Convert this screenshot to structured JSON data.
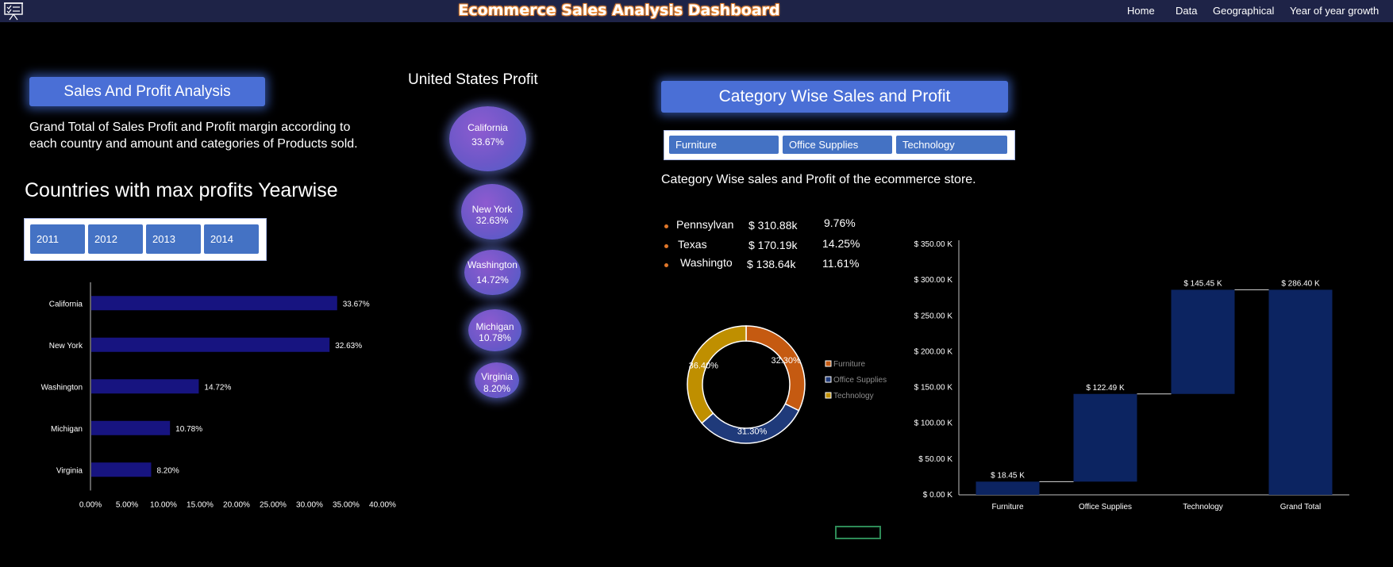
{
  "header": {
    "title": "Ecommerce Sales Analysis Dashboard",
    "nav": [
      "Home",
      "Data",
      "Geographical",
      "Year of year growth"
    ]
  },
  "left": {
    "section_button": "Sales And Profit  Analysis",
    "description_line1": "Grand Total of Sales Profit and  Profit margin according to",
    "description_line2": "each country and amount and categories of Products sold.",
    "heading": "Countries with max profits Yearwise",
    "years": [
      "2011",
      "2012",
      "2013",
      "2014"
    ]
  },
  "middle": {
    "heading": "United States Profit",
    "bubbles": [
      {
        "name": "California",
        "value": "33.67%"
      },
      {
        "name": "New York",
        "value": "32.63%"
      },
      {
        "name": "Washington",
        "value": "14.72%"
      },
      {
        "name": "Michigan",
        "value": "10.78%"
      },
      {
        "name": "Virginia",
        "value": "8.20%"
      }
    ]
  },
  "right": {
    "section_button": "Category Wise Sales and Profit",
    "categories": [
      "Furniture",
      "Office Supplies",
      "Technology"
    ],
    "description": "Category Wise sales and Profit of the ecommerce store.",
    "states": [
      {
        "name": "Pennsylvan",
        "amount": "$ 310.88k",
        "pct": "9.76%"
      },
      {
        "name": "Texas",
        "amount": "$ 170.19k",
        "pct": "14.25%"
      },
      {
        "name": "Washingto",
        "amount": "$ 138.64k",
        "pct": "11.61%"
      }
    ]
  },
  "colors": {
    "bar": "#171480",
    "furniture": "#c55a11",
    "office_supplies": "#1f3a7a",
    "technology": "#bf8f00",
    "waterfall": "#0c2461"
  },
  "chart_data": [
    {
      "type": "bar",
      "orientation": "horizontal",
      "categories": [
        "California",
        "New York",
        "Washington",
        "Michigan",
        "Virginia"
      ],
      "values": [
        33.67,
        32.63,
        14.72,
        10.78,
        8.2
      ],
      "data_labels": [
        "33.67%",
        "32.63%",
        "14.72%",
        "10.78%",
        "8.20%"
      ],
      "xlim": [
        0,
        40
      ],
      "x_ticks": [
        "0.00%",
        "5.00%",
        "10.00%",
        "15.00%",
        "20.00%",
        "25.00%",
        "30.00%",
        "35.00%",
        "40.00%"
      ]
    },
    {
      "type": "pie",
      "style": "doughnut",
      "categories": [
        "Furniture",
        "Office Supplies",
        "Technology"
      ],
      "values": [
        32.3,
        31.3,
        36.4
      ],
      "data_labels": [
        "32.30%",
        "31.30%",
        "36.40%"
      ],
      "legend": "right"
    },
    {
      "type": "bar",
      "style": "waterfall",
      "categories": [
        "Furniture",
        "Office Supplies",
        "Technology",
        "Grand Total"
      ],
      "values": [
        18.45,
        122.49,
        145.45,
        286.4
      ],
      "data_labels": [
        "$ 18.45 K",
        "$ 122.49 K",
        "$ 145.45 K",
        "$ 286.40 K"
      ],
      "ylim": [
        0,
        350
      ],
      "y_ticks": [
        "$ 0.00 K",
        "$ 50.00 K",
        "$ 100.00 K",
        "$ 150.00 K",
        "$ 200.00 K",
        "$ 250.00 K",
        "$ 300.00 K",
        "$ 350.00 K"
      ]
    }
  ]
}
